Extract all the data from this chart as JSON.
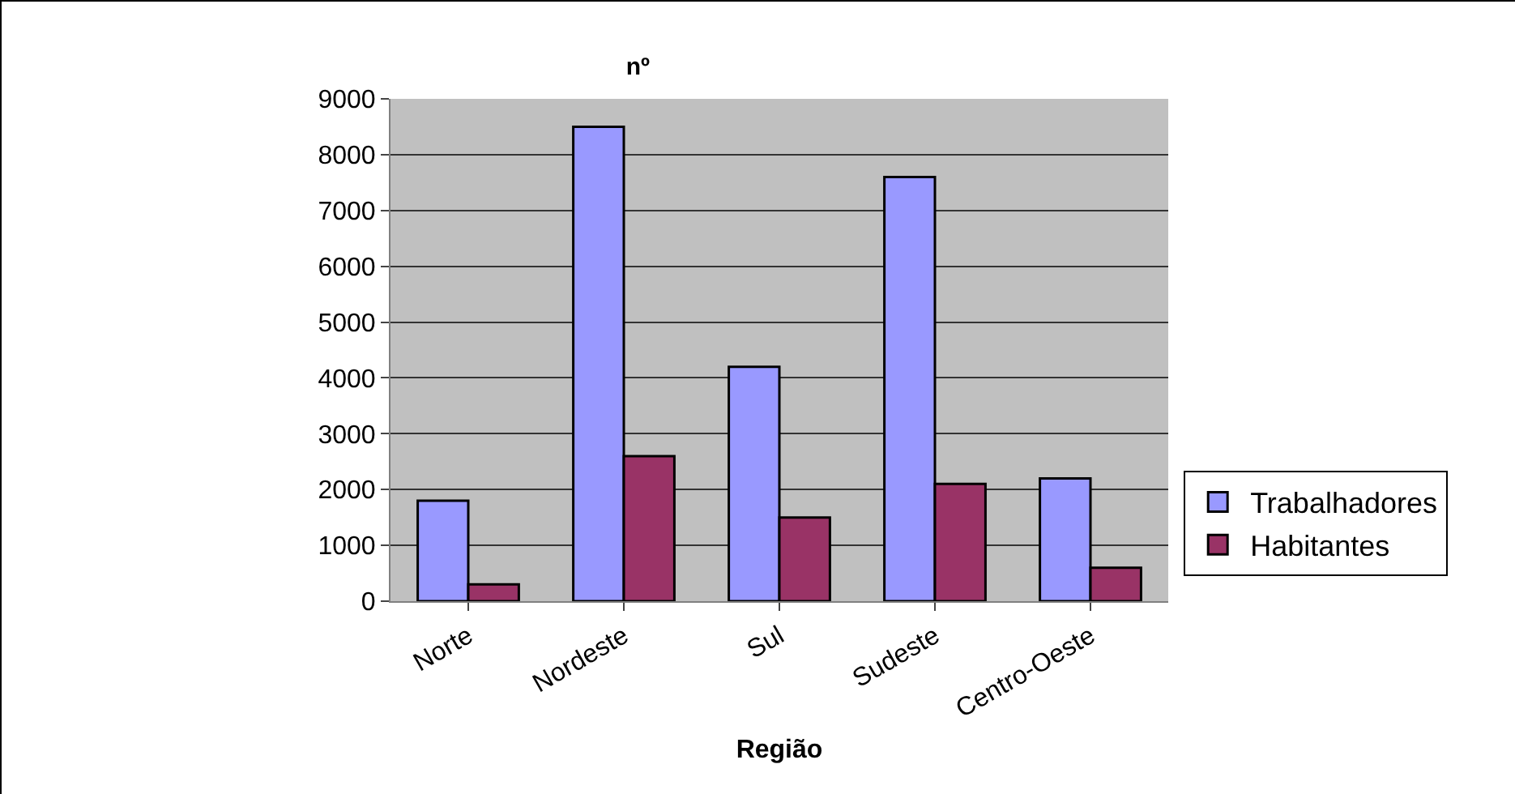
{
  "chart_data": {
    "type": "bar",
    "title": "nº",
    "xlabel": "Região",
    "categories": [
      "Norte",
      "Nordeste",
      "Sul",
      "Sudeste",
      "Centro-Oeste"
    ],
    "series": [
      {
        "name": "Trabalhadores",
        "color": "#9999ff",
        "values": [
          1800,
          8500,
          4200,
          7600,
          2200
        ]
      },
      {
        "name": "Habitantes",
        "color": "#993366",
        "values": [
          300,
          2600,
          1500,
          2100,
          600
        ]
      }
    ],
    "ylim": [
      0,
      9000
    ],
    "yticks": [
      0,
      1000,
      2000,
      3000,
      4000,
      5000,
      6000,
      7000,
      8000,
      9000
    ],
    "grid": "y",
    "legend": "right"
  }
}
